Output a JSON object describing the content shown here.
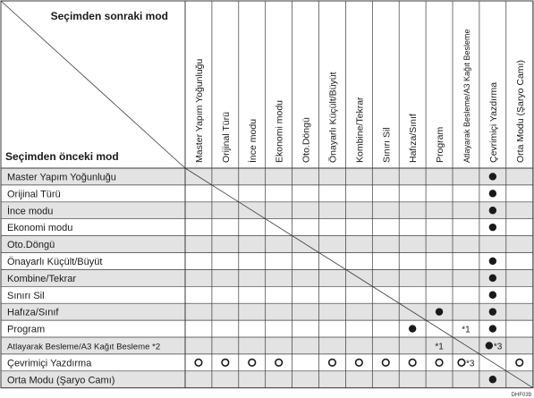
{
  "header_top_label": "Seçimden sonraki mod",
  "header_bottom_label": "Seçimden önceki mod",
  "columns": [
    "Master Yapım Yoğunluğu",
    "Orijinal Türü",
    "İnce modu",
    "Ekonomi modu",
    "Oto.Döngü",
    "Önayarlı Küçült/Büyüt",
    "Kombine/Tekrar",
    "Sınırı Sil",
    "Hafıza/Sınıf",
    "Program",
    "Atlayarak Besleme/A3 Kağıt Besleme",
    "Çevrimiçi Yazdırma",
    "Orta Modu (Şaryo Camı)"
  ],
  "rows": [
    {
      "label": "Master Yapım Yoğunluğu",
      "cells": [
        "",
        "",
        "",
        "",
        "",
        "",
        "",
        "",
        "",
        "",
        "",
        "●",
        ""
      ]
    },
    {
      "label": "Orijinal Türü",
      "cells": [
        "",
        "",
        "",
        "",
        "",
        "",
        "",
        "",
        "",
        "",
        "",
        "●",
        ""
      ]
    },
    {
      "label": "İnce modu",
      "cells": [
        "",
        "",
        "",
        "",
        "",
        "",
        "",
        "",
        "",
        "",
        "",
        "●",
        ""
      ]
    },
    {
      "label": "Ekonomi modu",
      "cells": [
        "",
        "",
        "",
        "",
        "",
        "",
        "",
        "",
        "",
        "",
        "",
        "●",
        ""
      ]
    },
    {
      "label": "Oto.Döngü",
      "cells": [
        "",
        "",
        "",
        "",
        "",
        "",
        "",
        "",
        "",
        "",
        "",
        "",
        ""
      ]
    },
    {
      "label": "Önayarlı Küçült/Büyüt",
      "cells": [
        "",
        "",
        "",
        "",
        "",
        "",
        "",
        "",
        "",
        "",
        "",
        "●",
        ""
      ]
    },
    {
      "label": "Kombine/Tekrar",
      "cells": [
        "",
        "",
        "",
        "",
        "",
        "",
        "",
        "",
        "",
        "",
        "",
        "●",
        ""
      ]
    },
    {
      "label": "Sınırı Sil",
      "cells": [
        "",
        "",
        "",
        "",
        "",
        "",
        "",
        "",
        "",
        "",
        "",
        "●",
        ""
      ]
    },
    {
      "label": "Hafıza/Sınıf",
      "cells": [
        "",
        "",
        "",
        "",
        "",
        "",
        "",
        "",
        "",
        "●",
        "",
        "●",
        ""
      ]
    },
    {
      "label": "Program",
      "cells": [
        "",
        "",
        "",
        "",
        "",
        "",
        "",
        "",
        "●",
        "",
        "*1",
        "●",
        ""
      ]
    },
    {
      "label": "Atlayarak Besleme/A3 Kağıt Besleme *2",
      "cells": [
        "",
        "",
        "",
        "",
        "",
        "",
        "",
        "",
        "",
        "*1",
        "",
        "●*3",
        ""
      ]
    },
    {
      "label": "Çevrimiçi Yazdırma",
      "cells": [
        "○",
        "○",
        "○",
        "○",
        "",
        "○",
        "○",
        "○",
        "○",
        "○",
        "○*3",
        "",
        "○"
      ]
    },
    {
      "label": "Orta Modu (Şaryo Camı)",
      "cells": [
        "",
        "",
        "",
        "",
        "",
        "",
        "",
        "",
        "",
        "",
        "",
        "●",
        ""
      ]
    }
  ],
  "figure_code": "DHF039",
  "colors": {
    "row_shade": "#e3e3e3",
    "row_white": "#ffffff",
    "line": "#3a3a3a",
    "text": "#1a1a1a"
  }
}
